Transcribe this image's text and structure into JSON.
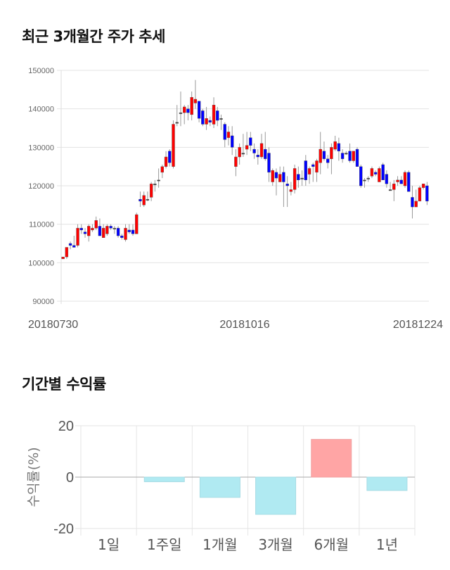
{
  "sections": {
    "price_title": "최근 3개월간 주가 추세",
    "return_title": "기간별 수익률"
  },
  "colors": {
    "up": "#ff0000",
    "down": "#0000ff",
    "wick": "#999999",
    "positive_bar": "#ffa5a5",
    "negative_bar": "#b0eaf2"
  },
  "chart_data": [
    {
      "type": "candlestick",
      "title": "최근 3개월간 주가 추세",
      "ylim": [
        90000,
        150000
      ],
      "yticks": [
        "150000",
        "140000",
        "130000",
        "120000",
        "110000",
        "100000",
        "90000"
      ],
      "ytick_values": [
        150000,
        140000,
        130000,
        120000,
        110000,
        100000,
        90000
      ],
      "xtick_labels": [
        "20180730",
        "20181016",
        "20181224"
      ],
      "grid": true,
      "ohlc_fields": [
        "open",
        "high",
        "low",
        "close"
      ],
      "candles": [
        [
          101000,
          101500,
          101000,
          101500
        ],
        [
          101500,
          104000,
          101000,
          104000
        ],
        [
          105000,
          105500,
          103500,
          104500
        ],
        [
          104500,
          107000,
          104000,
          104000
        ],
        [
          104500,
          110000,
          104000,
          109000
        ],
        [
          109000,
          110000,
          107500,
          108500
        ],
        [
          108000,
          109000,
          106500,
          107500
        ],
        [
          107000,
          110000,
          105500,
          109500
        ],
        [
          108500,
          110000,
          108000,
          109000
        ],
        [
          109000,
          112000,
          108500,
          111000
        ],
        [
          109500,
          111500,
          107000,
          107000
        ],
        [
          106500,
          110000,
          106500,
          109000
        ],
        [
          107500,
          110000,
          107000,
          109500
        ],
        [
          109500,
          110000,
          108500,
          109000
        ],
        [
          109000,
          109500,
          107500,
          109000
        ],
        [
          109000,
          109500,
          106500,
          107000
        ],
        [
          107000,
          107500,
          106000,
          106500
        ],
        [
          106000,
          110000,
          105500,
          109000
        ],
        [
          108500,
          110000,
          107500,
          108000
        ],
        [
          108500,
          110000,
          107000,
          107500
        ],
        [
          107500,
          113000,
          107500,
          112500
        ],
        [
          116500,
          118500,
          114500,
          116000
        ],
        [
          115000,
          118500,
          114500,
          117500
        ],
        [
          116500,
          118500,
          116000,
          116500
        ],
        [
          117000,
          121000,
          116000,
          120500
        ],
        [
          120500,
          121500,
          118500,
          120500
        ],
        [
          121500,
          124500,
          119500,
          121500
        ],
        [
          123500,
          125500,
          122000,
          125000
        ],
        [
          125000,
          129000,
          124500,
          127500
        ],
        [
          129000,
          129500,
          125000,
          126000
        ],
        [
          125000,
          137000,
          124500,
          136000
        ],
        [
          136500,
          141000,
          135500,
          136500
        ],
        [
          139000,
          144500,
          135500,
          139000
        ],
        [
          139000,
          141000,
          136000,
          140500
        ],
        [
          140000,
          141000,
          137000,
          139000
        ],
        [
          138500,
          144500,
          137000,
          143000
        ],
        [
          141500,
          147500,
          140000,
          142500
        ],
        [
          142000,
          142000,
          136500,
          137500
        ],
        [
          139500,
          140000,
          135500,
          136000
        ],
        [
          136000,
          140500,
          134500,
          137500
        ],
        [
          137000,
          138000,
          135500,
          136500
        ],
        [
          136000,
          143000,
          135000,
          141000
        ],
        [
          139500,
          140500,
          135500,
          137000
        ],
        [
          137500,
          138500,
          134500,
          137500
        ],
        [
          136000,
          136500,
          130000,
          132000
        ],
        [
          132500,
          135500,
          130500,
          134000
        ],
        [
          133000,
          135500,
          128000,
          130000
        ],
        [
          125000,
          129500,
          122500,
          127500
        ],
        [
          127500,
          131000,
          125500,
          130000
        ],
        [
          128500,
          133500,
          127500,
          128500
        ],
        [
          129500,
          134000,
          128000,
          130500
        ],
        [
          132500,
          134000,
          129000,
          130500
        ],
        [
          129500,
          131000,
          127000,
          128500
        ],
        [
          128000,
          129500,
          125500,
          127500
        ],
        [
          127500,
          133500,
          127000,
          131000
        ],
        [
          129500,
          134000,
          126500,
          127000
        ],
        [
          128500,
          130000,
          121000,
          123500
        ],
        [
          121000,
          124500,
          120000,
          124000
        ],
        [
          123500,
          124500,
          117500,
          122000
        ],
        [
          121000,
          125000,
          121000,
          123000
        ],
        [
          123500,
          125000,
          114500,
          121000
        ],
        [
          120500,
          122500,
          114500,
          120000
        ],
        [
          118500,
          121000,
          117500,
          119000
        ],
        [
          119000,
          125500,
          118000,
          124500
        ],
        [
          123000,
          125000,
          119500,
          121500
        ],
        [
          122000,
          124000,
          120000,
          122000
        ],
        [
          126500,
          128000,
          120000,
          121500
        ],
        [
          123000,
          125000,
          120500,
          124500
        ],
        [
          125500,
          126000,
          121000,
          125000
        ],
        [
          123500,
          127000,
          121000,
          126500
        ],
        [
          126000,
          134000,
          123000,
          129500
        ],
        [
          129000,
          131500,
          126500,
          127000
        ],
        [
          127000,
          128000,
          124500,
          126000
        ],
        [
          127000,
          131000,
          123000,
          130000
        ],
        [
          129500,
          133000,
          129000,
          131500
        ],
        [
          131000,
          132500,
          126500,
          129000
        ],
        [
          128500,
          129500,
          126000,
          127000
        ],
        [
          128500,
          129000,
          128000,
          128500
        ],
        [
          129000,
          131000,
          126000,
          126500
        ],
        [
          126500,
          129000,
          126000,
          129000
        ],
        [
          129500,
          130000,
          125000,
          125000
        ],
        [
          125000,
          125500,
          119500,
          120000
        ],
        [
          121500,
          122000,
          119500,
          121500
        ],
        [
          122000,
          122500,
          121000,
          122000
        ],
        [
          122500,
          125000,
          122000,
          124500
        ],
        [
          123500,
          124000,
          122500,
          123000
        ],
        [
          121000,
          125000,
          121000,
          124500
        ],
        [
          125500,
          126000,
          121500,
          121500
        ],
        [
          123000,
          124000,
          119500,
          120500
        ],
        [
          119000,
          121000,
          119000,
          119000
        ],
        [
          119000,
          121500,
          116000,
          120500
        ],
        [
          121000,
          122500,
          120000,
          121500
        ],
        [
          121500,
          122500,
          120500,
          120500
        ],
        [
          120000,
          124000,
          119500,
          123500
        ],
        [
          123500,
          124000,
          118500,
          118500
        ],
        [
          117000,
          120000,
          111500,
          114500
        ],
        [
          114500,
          119000,
          114500,
          116000
        ],
        [
          116000,
          120000,
          116000,
          119500
        ],
        [
          119500,
          120500,
          119000,
          120500
        ],
        [
          120000,
          121000,
          115000,
          116000
        ]
      ]
    },
    {
      "type": "bar",
      "title": "기간별 수익률",
      "ylabel": "수익률(%)",
      "ylim": [
        -20,
        20
      ],
      "yticks": [
        "20",
        "0",
        "-20"
      ],
      "ytick_values": [
        20,
        0,
        -20
      ],
      "categories": [
        "1일",
        "1주일",
        "1개월",
        "3개월",
        "6개월",
        "1년"
      ],
      "values": [
        0,
        -1.8,
        -7.9,
        -14.5,
        14.7,
        -5.2
      ],
      "grid": true
    }
  ]
}
